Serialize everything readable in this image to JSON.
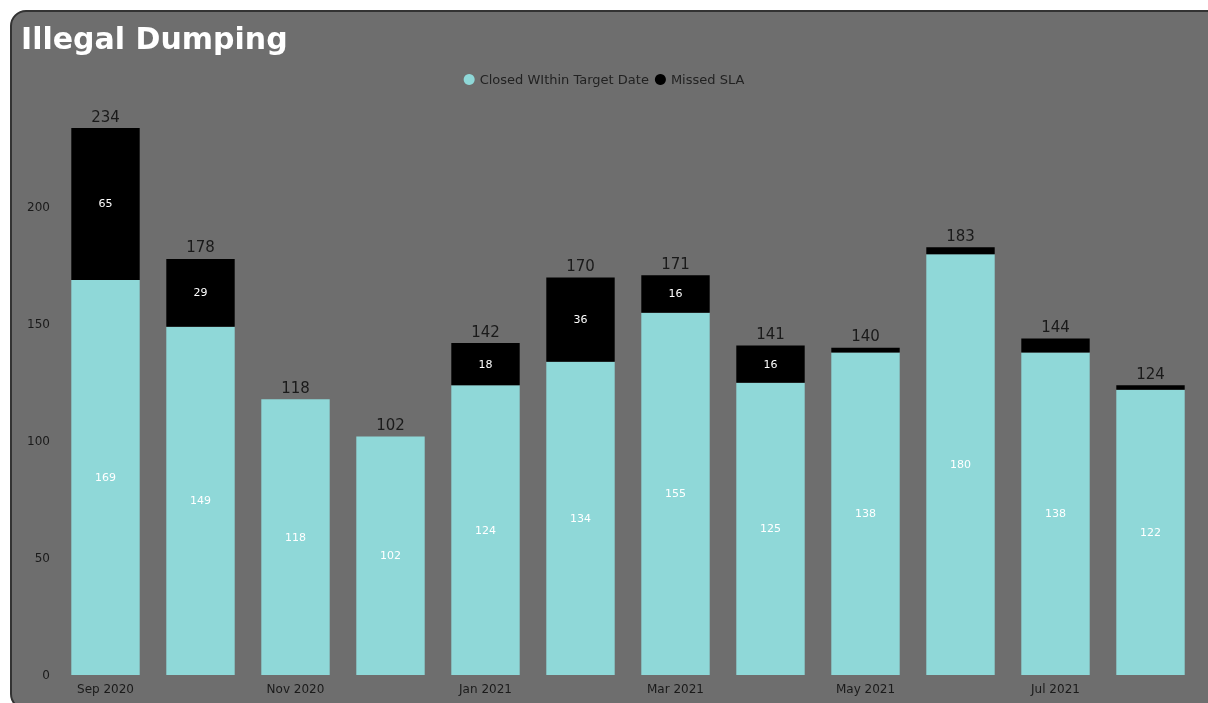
{
  "chart_data": {
    "type": "bar",
    "title": "Illegal Dumping",
    "stacked": true,
    "legend": "top",
    "grid": false,
    "categories": [
      "Sep 2020",
      null,
      "Nov 2020",
      null,
      "Jan 2021",
      null,
      "Mar 2021",
      null,
      "May 2021",
      null,
      "Jul 2021",
      null
    ],
    "series": [
      {
        "name": "Closed WIthin Target Date",
        "color": "#8fd8d8",
        "values": [
          169,
          149,
          118,
          102,
          124,
          134,
          155,
          125,
          138,
          180,
          138,
          122
        ],
        "value_labels": [
          "169",
          "149",
          "118",
          "102",
          "124",
          "134",
          "155",
          "125",
          "138",
          "180",
          "138",
          "122"
        ]
      },
      {
        "name": "Missed SLA",
        "color": "#000000",
        "values": [
          65,
          29,
          0,
          0,
          18,
          36,
          16,
          16,
          2,
          3,
          6,
          2
        ],
        "value_labels": [
          "65",
          "29",
          null,
          null,
          "18",
          "36",
          "16",
          "16",
          null,
          null,
          null,
          null
        ]
      }
    ],
    "totals": [
      "234",
      "178",
      "118",
      "102",
      "142",
      "170",
      "171",
      "141",
      "140",
      "183",
      "144",
      "124"
    ],
    "ylim": [
      0,
      234
    ],
    "yticks": [
      0,
      50,
      100,
      150,
      200
    ]
  }
}
